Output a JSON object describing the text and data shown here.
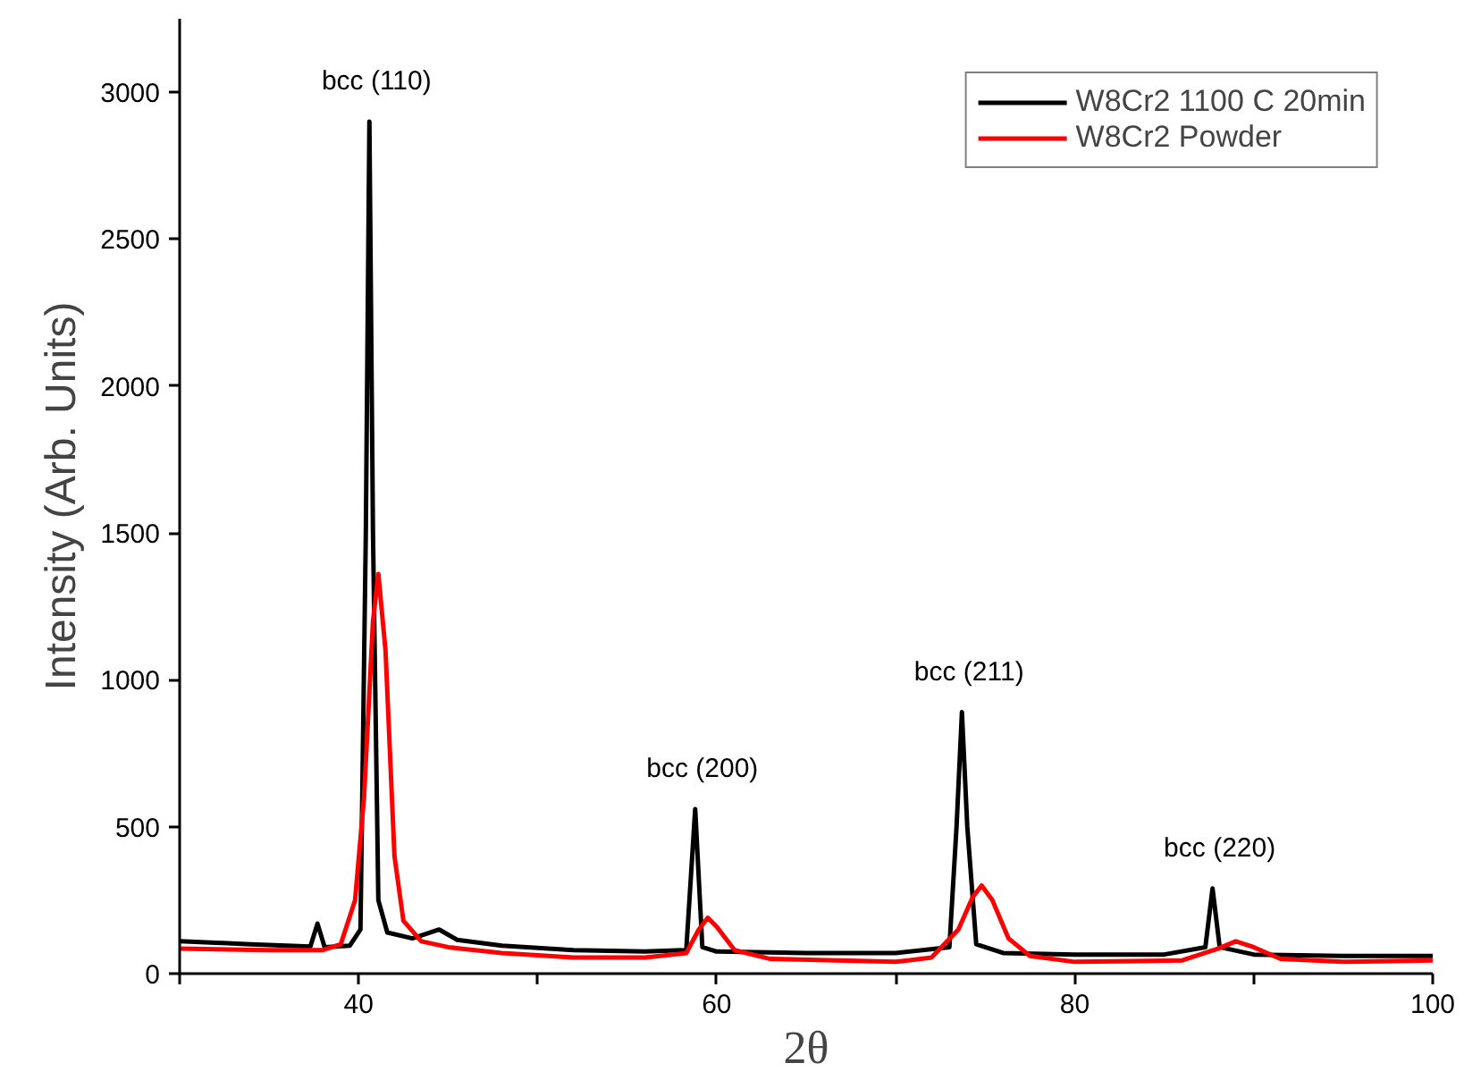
{
  "chart_data": {
    "type": "line",
    "xlabel": "2θ",
    "ylabel": "Intensity (Arb. Units)",
    "xlim": [
      30,
      100
    ],
    "ylim": [
      0,
      3250
    ],
    "xticks": [
      {
        "value": 30,
        "label": null
      },
      40,
      {
        "value": 50,
        "label": null
      },
      60,
      {
        "value": 70,
        "label": null
      },
      80,
      {
        "value": 90,
        "label": null
      },
      100
    ],
    "yticks": [
      0,
      500,
      1000,
      1500,
      2000,
      2500,
      3000
    ],
    "grid": false,
    "legend": "top right",
    "marker": "none",
    "line_style": "solid",
    "series": [
      {
        "name": "W8Cr2 1100 C 20min",
        "color": "#000000",
        "x": [
          30,
          32,
          34,
          36,
          37.3,
          37.7,
          38.1,
          39.5,
          40.1,
          40.4,
          40.6,
          40.8,
          41.1,
          41.6,
          43,
          44.5,
          45.5,
          48,
          52,
          56,
          58.3,
          58.8,
          59.2,
          60,
          65,
          70,
          73.0,
          73.4,
          73.7,
          74.0,
          74.5,
          76,
          80,
          85,
          87.3,
          87.7,
          88.1,
          90,
          95,
          100
        ],
        "values": [
          110,
          105,
          100,
          95,
          92,
          170,
          90,
          95,
          150,
          1500,
          2900,
          1500,
          250,
          140,
          120,
          150,
          115,
          95,
          80,
          75,
          80,
          560,
          90,
          75,
          70,
          70,
          90,
          500,
          890,
          500,
          100,
          70,
          65,
          65,
          90,
          290,
          90,
          65,
          60,
          60
        ]
      },
      {
        "name": "W8Cr2 Powder",
        "color": "#ff0000",
        "x": [
          30,
          35,
          38,
          39,
          39.8,
          40.3,
          40.8,
          41.1,
          41.5,
          42,
          42.5,
          43.5,
          45,
          48,
          52,
          56,
          58.3,
          59,
          59.5,
          60,
          61,
          63,
          70,
          72,
          73.5,
          74.3,
          74.8,
          75.4,
          76.3,
          77.5,
          80,
          86,
          88,
          89,
          90,
          91.5,
          95,
          100
        ],
        "values": [
          85,
          80,
          80,
          100,
          250,
          600,
          1200,
          1360,
          1100,
          400,
          180,
          110,
          90,
          70,
          55,
          55,
          70,
          150,
          190,
          160,
          80,
          50,
          40,
          55,
          150,
          260,
          300,
          250,
          120,
          60,
          40,
          45,
          85,
          110,
          90,
          50,
          40,
          45
        ]
      }
    ],
    "annotations": [
      {
        "text": "bcc (110)",
        "x": 40.6,
        "y": 2900
      },
      {
        "text": "bcc (200)",
        "x": 58.8,
        "y": 560
      },
      {
        "text": "bcc (211)",
        "x": 73.7,
        "y": 890
      },
      {
        "text": "bcc (220)",
        "x": 87.7,
        "y": 290
      }
    ]
  }
}
